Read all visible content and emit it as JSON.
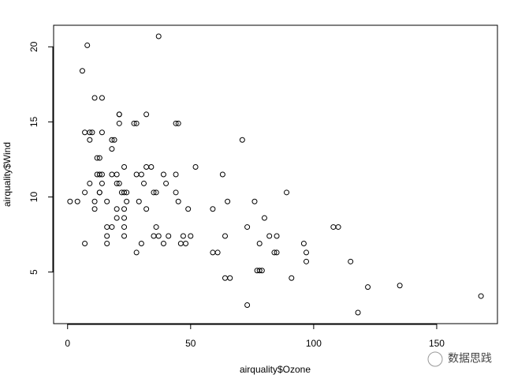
{
  "chart_data": {
    "type": "scatter",
    "x_label": "airquality$Ozone",
    "y_label": "airquality$Wind",
    "x": [
      41,
      36,
      12,
      18,
      28,
      23,
      19,
      8,
      7,
      16,
      11,
      14,
      18,
      14,
      34,
      6,
      30,
      11,
      1,
      11,
      4,
      32,
      23,
      45,
      115,
      37,
      29,
      71,
      39,
      23,
      21,
      37,
      20,
      12,
      13,
      135,
      49,
      32,
      64,
      40,
      77,
      97,
      97,
      85,
      10,
      27,
      7,
      48,
      35,
      61,
      79,
      63,
      16,
      80,
      108,
      20,
      52,
      82,
      50,
      64,
      59,
      39,
      9,
      16,
      78,
      35,
      66,
      122,
      89,
      110,
      44,
      28,
      65,
      22,
      59,
      23,
      31,
      44,
      21,
      9,
      45,
      168,
      73,
      76,
      118,
      84,
      85,
      96,
      78,
      73,
      91,
      47,
      32,
      20,
      23,
      21,
      24,
      44,
      21,
      28,
      9,
      13,
      46,
      18,
      13,
      24,
      16,
      13,
      23,
      36,
      7,
      14,
      30,
      14,
      18,
      20
    ],
    "values": [
      7.4,
      8.0,
      12.6,
      11.5,
      14.9,
      8.6,
      13.8,
      20.1,
      6.9,
      9.7,
      9.2,
      10.9,
      13.2,
      11.5,
      12.0,
      18.4,
      11.5,
      9.7,
      9.7,
      16.6,
      9.7,
      12.0,
      12.0,
      14.9,
      5.7,
      7.4,
      9.7,
      13.8,
      11.5,
      8.0,
      14.9,
      20.7,
      9.2,
      11.5,
      10.3,
      4.1,
      9.2,
      9.2,
      4.6,
      10.9,
      5.1,
      6.3,
      5.7,
      7.4,
      14.3,
      14.9,
      14.3,
      6.9,
      10.3,
      6.3,
      5.1,
      11.5,
      6.9,
      8.6,
      8.0,
      8.6,
      12.0,
      7.4,
      7.4,
      7.4,
      9.2,
      6.9,
      13.8,
      7.4,
      6.9,
      7.4,
      4.6,
      4.0,
      10.3,
      8.0,
      11.5,
      11.5,
      9.7,
      10.3,
      6.3,
      7.4,
      10.9,
      10.3,
      15.5,
      14.3,
      9.7,
      3.4,
      8.0,
      9.7,
      2.3,
      6.3,
      6.3,
      6.9,
      5.1,
      2.8,
      4.6,
      7.4,
      15.5,
      10.9,
      10.3,
      10.9,
      9.7,
      14.9,
      15.5,
      6.3,
      10.9,
      11.5,
      6.9,
      13.8,
      10.3,
      10.3,
      8.0,
      12.6,
      9.2,
      10.3,
      10.3,
      16.6,
      6.9,
      14.3,
      8.0,
      11.5
    ],
    "color": "#000000",
    "xlim": [
      -5.68,
      174.68
    ],
    "xticks": [
      0,
      50,
      100,
      150
    ],
    "ylim": [
      1.564,
      21.436
    ],
    "yticks": [
      5,
      10,
      15,
      20
    ],
    "grid": false
  },
  "watermark": "数据思践"
}
